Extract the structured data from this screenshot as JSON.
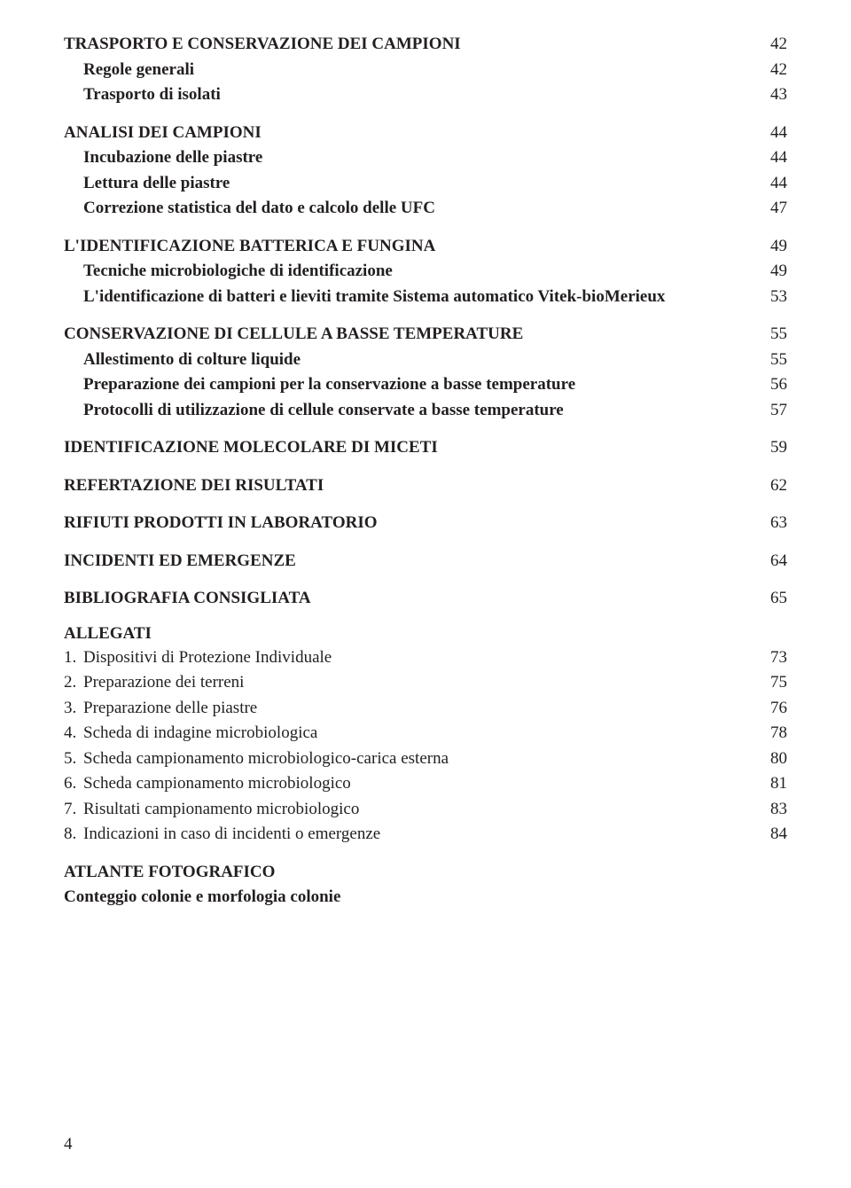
{
  "sections": [
    {
      "rows": [
        {
          "label": "TRASPORTO E CONSERVAZIONE DEI CAMPIONI",
          "page": "42",
          "bold": true,
          "indent": false
        },
        {
          "label": "Regole generali",
          "page": "42",
          "bold": true,
          "indent": true
        },
        {
          "label": "Trasporto di isolati",
          "page": "43",
          "bold": true,
          "indent": true
        }
      ]
    },
    {
      "rows": [
        {
          "label": "ANALISI DEI CAMPIONI",
          "page": "44",
          "bold": true,
          "indent": false
        },
        {
          "label": "Incubazione delle piastre",
          "page": "44",
          "bold": true,
          "indent": true
        },
        {
          "label": "Lettura delle piastre",
          "page": "44",
          "bold": true,
          "indent": true
        },
        {
          "label": "Correzione statistica del dato e calcolo delle UFC",
          "page": "47",
          "bold": true,
          "indent": true
        }
      ]
    },
    {
      "rows": [
        {
          "label": "L'IDENTIFICAZIONE BATTERICA E FUNGINA",
          "page": "49",
          "bold": true,
          "indent": false
        },
        {
          "label": "Tecniche microbiologiche di identificazione",
          "page": "49",
          "bold": true,
          "indent": true
        },
        {
          "label": "L'identificazione di batteri e lieviti tramite Sistema automatico Vitek-bioMerieux",
          "page": "53",
          "bold": true,
          "indent": true
        }
      ]
    },
    {
      "rows": [
        {
          "label": "CONSERVAZIONE DI CELLULE A BASSE TEMPERATURE",
          "page": "55",
          "bold": true,
          "indent": false
        },
        {
          "label": "Allestimento di colture liquide",
          "page": "55",
          "bold": true,
          "indent": true
        },
        {
          "label": "Preparazione dei campioni per la conservazione a basse temperature",
          "page": "56",
          "bold": true,
          "indent": true
        },
        {
          "label": "Protocolli di utilizzazione di cellule conservate a basse temperature",
          "page": "57",
          "bold": true,
          "indent": true
        }
      ]
    },
    {
      "rows": [
        {
          "label": "IDENTIFICAZIONE MOLECOLARE DI MICETI",
          "page": "59",
          "bold": true,
          "indent": false
        }
      ]
    },
    {
      "rows": [
        {
          "label": "REFERTAZIONE DEI RISULTATI",
          "page": "62",
          "bold": true,
          "indent": false
        }
      ]
    },
    {
      "rows": [
        {
          "label": "RIFIUTI PRODOTTI IN LABORATORIO",
          "page": "63",
          "bold": true,
          "indent": false
        }
      ]
    },
    {
      "rows": [
        {
          "label": "INCIDENTI ED EMERGENZE",
          "page": "64",
          "bold": true,
          "indent": false
        }
      ]
    },
    {
      "rows": [
        {
          "label": "BIBLIOGRAFIA CONSIGLIATA",
          "page": "65",
          "bold": true,
          "indent": false
        }
      ]
    }
  ],
  "allegati": {
    "heading": "ALLEGATI",
    "items": [
      {
        "num": "1.",
        "label": "Dispositivi di Protezione Individuale",
        "page": "73"
      },
      {
        "num": "2.",
        "label": "Preparazione dei terreni",
        "page": "75"
      },
      {
        "num": "3.",
        "label": "Preparazione delle piastre",
        "page": "76"
      },
      {
        "num": "4.",
        "label": "Scheda di indagine microbiologica",
        "page": "78"
      },
      {
        "num": "5.",
        "label": "Scheda campionamento microbiologico-carica esterna",
        "page": "80"
      },
      {
        "num": "6.",
        "label": "Scheda campionamento microbiologico",
        "page": "81"
      },
      {
        "num": "7.",
        "label": "Risultati campionamento microbiologico",
        "page": "83"
      },
      {
        "num": "8.",
        "label": "Indicazioni in caso di incidenti o emergenze",
        "page": "84"
      }
    ]
  },
  "atlante": {
    "line1": "ATLANTE FOTOGRAFICO",
    "line2": "Conteggio colonie e morfologia colonie"
  },
  "footer": "4"
}
